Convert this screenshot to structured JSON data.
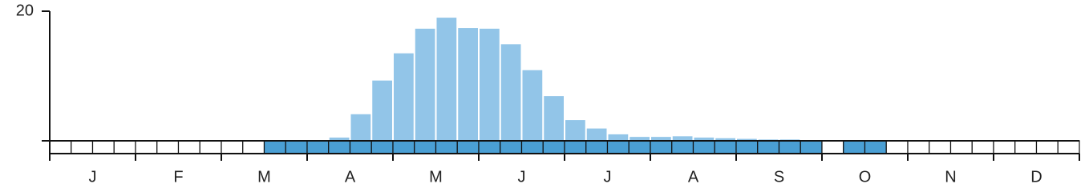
{
  "chart_data": {
    "type": "bar",
    "values": [
      0,
      0,
      0,
      0,
      0,
      0,
      0,
      0,
      0,
      0,
      0,
      0,
      0,
      0.5,
      4.1,
      9.3,
      13.5,
      17.3,
      19,
      17.4,
      17.3,
      14.9,
      10.9,
      6.9,
      3.2,
      1.9,
      1.0,
      0.6,
      0.6,
      0.7,
      0.5,
      0.4,
      0.3,
      0.2,
      0.2,
      0.1,
      0,
      0,
      0,
      0,
      0,
      0,
      0,
      0,
      0,
      0,
      0,
      0
    ],
    "presence": [
      0,
      0,
      0,
      0,
      0,
      0,
      0,
      0,
      0,
      0,
      1,
      1,
      1,
      1,
      1,
      1,
      1,
      1,
      1,
      1,
      1,
      1,
      1,
      1,
      1,
      1,
      1,
      1,
      1,
      1,
      1,
      1,
      1,
      1,
      1,
      1,
      0,
      1,
      1,
      0,
      0,
      0,
      0,
      0,
      0,
      0,
      0,
      0
    ],
    "months": [
      "J",
      "F",
      "M",
      "A",
      "M",
      "J",
      "J",
      "A",
      "S",
      "O",
      "N",
      "D"
    ],
    "color": "#92c5e8",
    "presence_color": "#4a9fd4",
    "ylim": [
      0,
      20
    ],
    "yticks": [
      20
    ]
  }
}
